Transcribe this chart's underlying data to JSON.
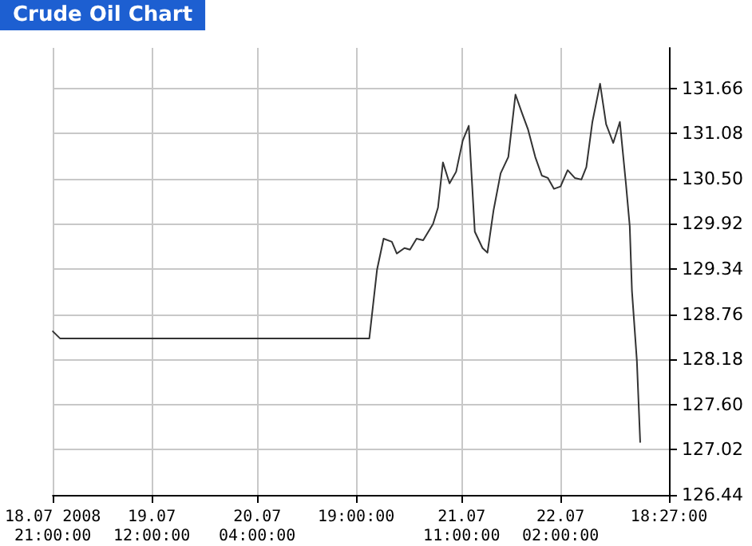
{
  "chart_data": {
    "type": "line",
    "title": "Crude Oil Chart",
    "x": [
      "2008-07-18T21:00",
      "2008-07-18T22:05",
      "2008-07-20T21:00",
      "2008-07-20T22:10",
      "2008-07-20T23:10",
      "2008-07-21T00:25",
      "2008-07-21T01:10",
      "2008-07-21T02:20",
      "2008-07-21T03:10",
      "2008-07-21T04:10",
      "2008-07-21T05:10",
      "2008-07-21T06:40",
      "2008-07-21T07:25",
      "2008-07-21T08:10",
      "2008-07-21T09:10",
      "2008-07-21T10:10",
      "2008-07-21T11:10",
      "2008-07-21T12:05",
      "2008-07-21T13:00",
      "2008-07-21T14:10",
      "2008-07-21T14:55",
      "2008-07-21T15:50",
      "2008-07-21T16:55",
      "2008-07-21T18:05",
      "2008-07-21T19:10",
      "2008-07-21T20:10",
      "2008-07-21T21:05",
      "2008-07-21T22:10",
      "2008-07-21T23:10",
      "2008-07-22T00:05",
      "2008-07-22T01:00",
      "2008-07-22T02:00",
      "2008-07-22T03:05",
      "2008-07-22T04:10",
      "2008-07-22T05:10",
      "2008-07-22T05:55",
      "2008-07-22T06:50",
      "2008-07-22T08:00",
      "2008-07-22T08:55",
      "2008-07-22T10:00",
      "2008-07-22T11:00",
      "2008-07-22T11:55",
      "2008-07-22T12:30",
      "2008-07-22T12:50",
      "2008-07-22T13:35",
      "2008-07-22T14:05"
    ],
    "series": [
      {
        "color": "#333333",
        "values": [
          128.54,
          128.45,
          128.45,
          129.33,
          129.73,
          129.69,
          129.54,
          129.61,
          129.59,
          129.73,
          129.71,
          129.92,
          130.13,
          130.71,
          130.44,
          130.59,
          130.99,
          131.18,
          129.82,
          129.61,
          129.55,
          130.09,
          130.57,
          130.78,
          131.58,
          131.34,
          131.13,
          130.78,
          130.54,
          130.51,
          130.37,
          130.4,
          130.61,
          130.51,
          130.49,
          130.65,
          131.23,
          131.72,
          131.2,
          130.96,
          131.23,
          130.44,
          129.89,
          129.06,
          128.16,
          127.12
        ]
      }
    ],
    "xlim": [
      "2008-07-18T21:00",
      "2008-07-22T18:27"
    ],
    "xticks": [
      {
        "value": "2008-07-18T21:00",
        "label": "18.07 2008\n21:00:00"
      },
      {
        "value": "2008-07-19T12:00",
        "label": "19.07\n12:00:00"
      },
      {
        "value": "2008-07-20T04:00",
        "label": "20.07\n04:00:00"
      },
      {
        "value": "2008-07-20T19:00",
        "label": "19:00:00"
      },
      {
        "value": "2008-07-21T11:00",
        "label": "21.07\n11:00:00"
      },
      {
        "value": "2008-07-22T02:00",
        "label": "22.07\n02:00:00"
      },
      {
        "value": "2008-07-22T18:27",
        "label": "18:27:00"
      }
    ],
    "ylim": [
      126.44,
      132.18
    ],
    "yticks": [
      126.44,
      127.02,
      {
        "value": 127.6,
        "label": "127.60"
      },
      128.18,
      128.76,
      129.34,
      129.92,
      {
        "value": 130.5,
        "label": "130.50"
      },
      131.08,
      131.66
    ],
    "grid": true,
    "marker": "none",
    "line_style": "solid"
  }
}
